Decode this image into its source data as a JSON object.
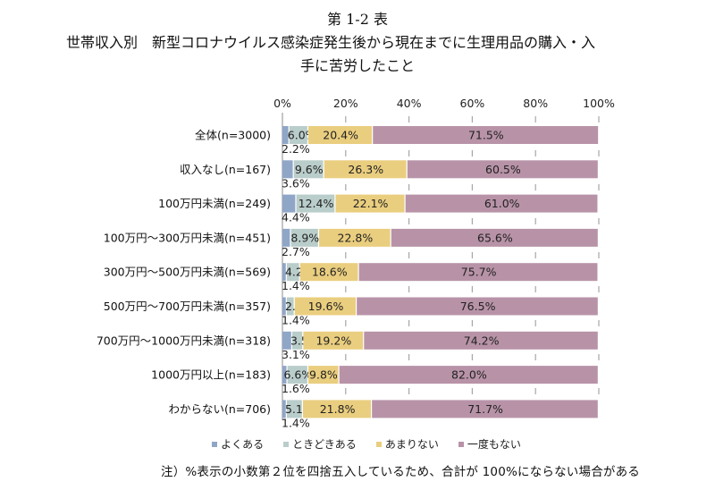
{
  "titles": {
    "line1": "第 1-2 表",
    "line2": "世帯収入別　新型コロナウイルス感染症発生後から現在までに生理用品の購入・入",
    "line3": "手に苦労したこと"
  },
  "note": "注）%表示の小数第２位を四捨五入しているため、合計が 100%にならない場合がある",
  "chart_data": {
    "type": "bar",
    "orientation": "horizontal",
    "stacked": true,
    "title": "第 1-2 表 世帯収入別　新型コロナウイルス感染症発生後から現在までに生理用品の購入・入手に苦労したこと",
    "xlabel": "",
    "ylabel": "",
    "xlim": [
      0,
      100
    ],
    "xticks": [
      "0%",
      "20%",
      "40%",
      "60%",
      "80%",
      "100%"
    ],
    "grid": true,
    "legend_position": "bottom",
    "categories": [
      "全体(n=3000)",
      "収入なし(n=167)",
      "100万円未満(n=249)",
      "100万円～300万円未満(n=451)",
      "300万円～500万円未満(n=569)",
      "500万円～700万円未満(n=357)",
      "700万円～1000万円未満(n=318)",
      "1000万円以上(n=183)",
      "わからない(n=706)"
    ],
    "series": [
      {
        "name": "よくある",
        "color": "#8fa6c7",
        "values": [
          2.2,
          3.6,
          4.4,
          2.7,
          1.4,
          1.4,
          3.1,
          1.6,
          1.4
        ]
      },
      {
        "name": "ときどきある",
        "color": "#b9cdca",
        "values": [
          6.0,
          9.6,
          12.4,
          8.9,
          4.2,
          2.5,
          3.5,
          6.6,
          5.1
        ]
      },
      {
        "name": "あまりない",
        "color": "#eace7f",
        "values": [
          20.4,
          26.3,
          22.1,
          22.8,
          18.6,
          19.6,
          19.2,
          9.8,
          21.8
        ]
      },
      {
        "name": "一度もない",
        "color": "#b893a8",
        "values": [
          71.5,
          60.5,
          61.0,
          65.6,
          75.7,
          76.5,
          74.2,
          82.0,
          71.7
        ]
      }
    ]
  }
}
